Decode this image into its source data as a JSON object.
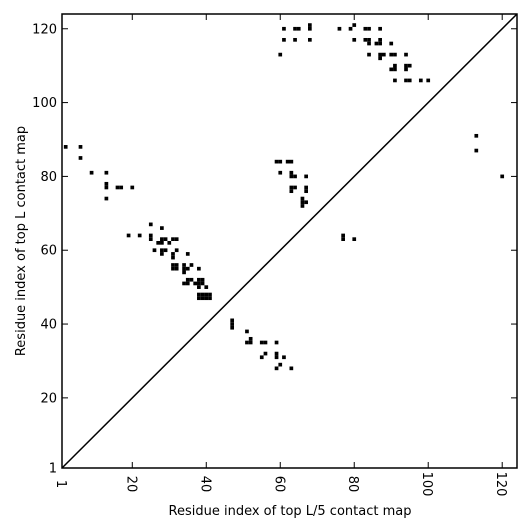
{
  "chart_data": {
    "type": "scatter",
    "xlabel": "Residue index of top L/5 contact map",
    "ylabel": "Residue index of top L contact map",
    "xlim": [
      1,
      124
    ],
    "ylim": [
      1,
      124
    ],
    "x_ticks": [
      1,
      20,
      40,
      60,
      80,
      100,
      120
    ],
    "x_tick_labels": [
      "1",
      "20",
      "40",
      "60",
      "80",
      "100",
      "120"
    ],
    "y_ticks": [
      1,
      20,
      40,
      60,
      80,
      100,
      120
    ],
    "y_tick_labels": [
      "1",
      "20",
      "40",
      "60",
      "80",
      "100",
      "120"
    ],
    "grid": false,
    "diagonal_line": true,
    "marker": "square",
    "marker_color": "#000000",
    "series": [
      {
        "points": [
          [
            2,
            88
          ],
          [
            6,
            88
          ],
          [
            6,
            85
          ],
          [
            9,
            81
          ],
          [
            13,
            81
          ],
          [
            13,
            78
          ],
          [
            13,
            77
          ],
          [
            13,
            74
          ],
          [
            16,
            77
          ],
          [
            17,
            77
          ],
          [
            20,
            77
          ],
          [
            19,
            64
          ],
          [
            22,
            64
          ],
          [
            25,
            67
          ],
          [
            25,
            64
          ],
          [
            25,
            63
          ],
          [
            26,
            60
          ],
          [
            27,
            62
          ],
          [
            28,
            66
          ],
          [
            28,
            63
          ],
          [
            28,
            62
          ],
          [
            28,
            60
          ],
          [
            28,
            59
          ],
          [
            29,
            63
          ],
          [
            29,
            60
          ],
          [
            30,
            62
          ],
          [
            31,
            63
          ],
          [
            31,
            59
          ],
          [
            31,
            58
          ],
          [
            31,
            56
          ],
          [
            31,
            55
          ],
          [
            32,
            63
          ],
          [
            32,
            60
          ],
          [
            32,
            56
          ],
          [
            32,
            55
          ],
          [
            34,
            56
          ],
          [
            34,
            55
          ],
          [
            34,
            54
          ],
          [
            34,
            51
          ],
          [
            35,
            59
          ],
          [
            35,
            55
          ],
          [
            35,
            52
          ],
          [
            35,
            51
          ],
          [
            36,
            56
          ],
          [
            36,
            52
          ],
          [
            37,
            51
          ],
          [
            38,
            55
          ],
          [
            38,
            52
          ],
          [
            38,
            51
          ],
          [
            38,
            50
          ],
          [
            38,
            48
          ],
          [
            38,
            47
          ],
          [
            39,
            52
          ],
          [
            39,
            51
          ],
          [
            39,
            48
          ],
          [
            39,
            47
          ],
          [
            40,
            50
          ],
          [
            40,
            48
          ],
          [
            40,
            47
          ],
          [
            41,
            48
          ],
          [
            41,
            47
          ],
          [
            47,
            41
          ],
          [
            47,
            40
          ],
          [
            47,
            39
          ],
          [
            51,
            38
          ],
          [
            51,
            35
          ],
          [
            52,
            36
          ],
          [
            52,
            35
          ],
          [
            55,
            35
          ],
          [
            55,
            31
          ],
          [
            56,
            35
          ],
          [
            56,
            32
          ],
          [
            59,
            35
          ],
          [
            59,
            32
          ],
          [
            59,
            31
          ],
          [
            59,
            28
          ],
          [
            60,
            29
          ],
          [
            61,
            31
          ],
          [
            63,
            28
          ],
          [
            59,
            84
          ],
          [
            60,
            84
          ],
          [
            60,
            81
          ],
          [
            62,
            84
          ],
          [
            63,
            84
          ],
          [
            63,
            81
          ],
          [
            63,
            80
          ],
          [
            63,
            77
          ],
          [
            63,
            76
          ],
          [
            64,
            80
          ],
          [
            64,
            77
          ],
          [
            66,
            74
          ],
          [
            66,
            73
          ],
          [
            66,
            72
          ],
          [
            67,
            80
          ],
          [
            67,
            77
          ],
          [
            67,
            76
          ],
          [
            67,
            73
          ],
          [
            60,
            113
          ],
          [
            61,
            120
          ],
          [
            61,
            117
          ],
          [
            64,
            120
          ],
          [
            64,
            117
          ],
          [
            65,
            120
          ],
          [
            68,
            121
          ],
          [
            68,
            120
          ],
          [
            68,
            117
          ],
          [
            76,
            120
          ],
          [
            77,
            64
          ],
          [
            77,
            63
          ],
          [
            79,
            120
          ],
          [
            80,
            121
          ],
          [
            80,
            117
          ],
          [
            80,
            63
          ],
          [
            83,
            120
          ],
          [
            83,
            117
          ],
          [
            84,
            120
          ],
          [
            84,
            117
          ],
          [
            84,
            116
          ],
          [
            84,
            113
          ],
          [
            86,
            116
          ],
          [
            87,
            120
          ],
          [
            87,
            117
          ],
          [
            87,
            116
          ],
          [
            87,
            113
          ],
          [
            87,
            112
          ],
          [
            88,
            113
          ],
          [
            90,
            116
          ],
          [
            90,
            113
          ],
          [
            90,
            109
          ],
          [
            91,
            113
          ],
          [
            91,
            110
          ],
          [
            91,
            109
          ],
          [
            91,
            106
          ],
          [
            94,
            113
          ],
          [
            94,
            110
          ],
          [
            94,
            109
          ],
          [
            94,
            106
          ],
          [
            95,
            110
          ],
          [
            95,
            106
          ],
          [
            98,
            106
          ],
          [
            100,
            106
          ],
          [
            113,
            91
          ],
          [
            113,
            87
          ],
          [
            120,
            80
          ]
        ]
      }
    ]
  }
}
